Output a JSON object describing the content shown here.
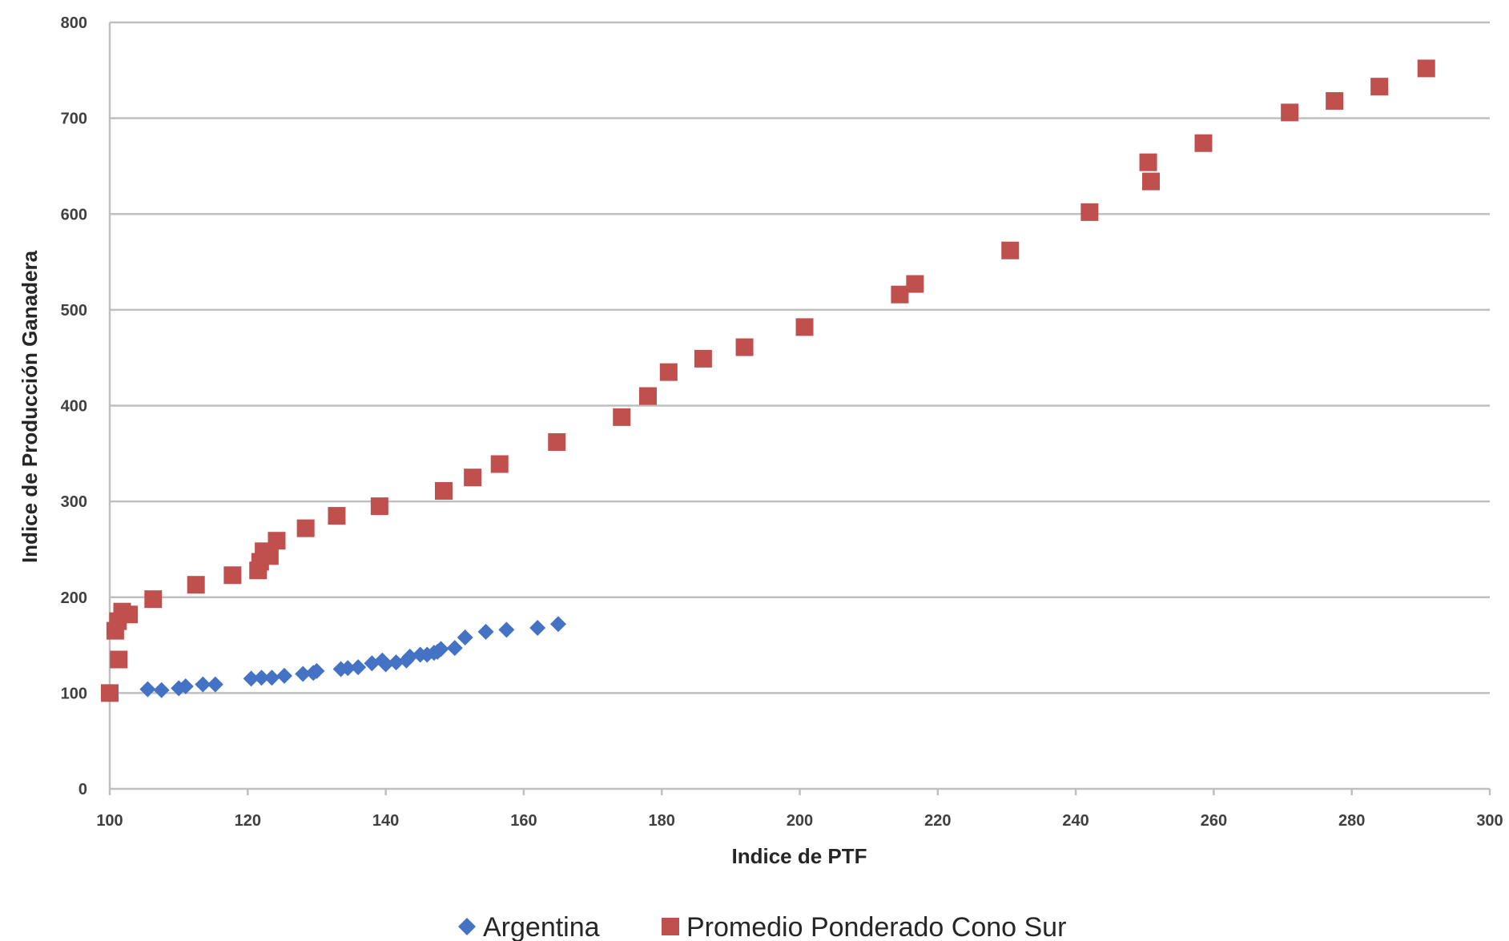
{
  "chart_data": {
    "type": "scatter",
    "xlabel": "Indice de PTF",
    "ylabel": "Indice de Producción Ganadera",
    "xlim": [
      100,
      300
    ],
    "ylim": [
      0,
      800
    ],
    "xticks": [
      100,
      120,
      140,
      160,
      180,
      200,
      220,
      240,
      260,
      280,
      300
    ],
    "yticks": [
      0,
      100,
      200,
      300,
      400,
      500,
      600,
      700,
      800
    ],
    "grid": "horizontal",
    "legend": "bottom",
    "series": [
      {
        "name": "Argentina",
        "marker": "diamond",
        "color": "#4472C4",
        "points": [
          [
            105.5,
            104
          ],
          [
            107.5,
            103
          ],
          [
            110,
            105
          ],
          [
            111,
            107
          ],
          [
            113.5,
            109
          ],
          [
            115.3,
            109
          ],
          [
            120.5,
            115
          ],
          [
            122,
            116
          ],
          [
            123.5,
            116
          ],
          [
            125.3,
            118
          ],
          [
            128,
            120
          ],
          [
            129.5,
            121
          ],
          [
            130,
            123
          ],
          [
            133.5,
            125
          ],
          [
            134.5,
            126
          ],
          [
            136,
            127
          ],
          [
            138,
            131
          ],
          [
            139.5,
            134
          ],
          [
            140,
            130
          ],
          [
            141.5,
            132
          ],
          [
            143,
            134
          ],
          [
            143.5,
            138
          ],
          [
            145,
            140
          ],
          [
            146,
            140
          ],
          [
            147,
            142
          ],
          [
            147.5,
            143
          ],
          [
            148,
            146
          ],
          [
            150,
            147
          ],
          [
            151.5,
            158
          ],
          [
            154.5,
            164
          ],
          [
            157.5,
            166
          ],
          [
            162,
            168
          ],
          [
            165,
            172
          ]
        ]
      },
      {
        "name": "Promedio Ponderado Cono Sur",
        "marker": "square",
        "color": "#C0504D",
        "points": [
          [
            100,
            100
          ],
          [
            100.8,
            165
          ],
          [
            101.2,
            175
          ],
          [
            101.3,
            135
          ],
          [
            101.8,
            185
          ],
          [
            102.8,
            182
          ],
          [
            106.3,
            198
          ],
          [
            112.5,
            213
          ],
          [
            117.8,
            223
          ],
          [
            121.5,
            228
          ],
          [
            121.8,
            237
          ],
          [
            122.3,
            248
          ],
          [
            123.2,
            243
          ],
          [
            124.2,
            259
          ],
          [
            128.4,
            272
          ],
          [
            132.9,
            285
          ],
          [
            139.1,
            295
          ],
          [
            148.4,
            311
          ],
          [
            152.6,
            325
          ],
          [
            156.5,
            339
          ],
          [
            164.8,
            362
          ],
          [
            174.2,
            388
          ],
          [
            178,
            410
          ],
          [
            181,
            435
          ],
          [
            186,
            449
          ],
          [
            192,
            461
          ],
          [
            200.7,
            482
          ],
          [
            214.5,
            516
          ],
          [
            216.7,
            527
          ],
          [
            230.5,
            562
          ],
          [
            242,
            602
          ],
          [
            250.5,
            654
          ],
          [
            250.9,
            634
          ],
          [
            258.5,
            674
          ],
          [
            271,
            706
          ],
          [
            277.5,
            718
          ],
          [
            284,
            733
          ],
          [
            290.8,
            752
          ]
        ]
      }
    ]
  }
}
